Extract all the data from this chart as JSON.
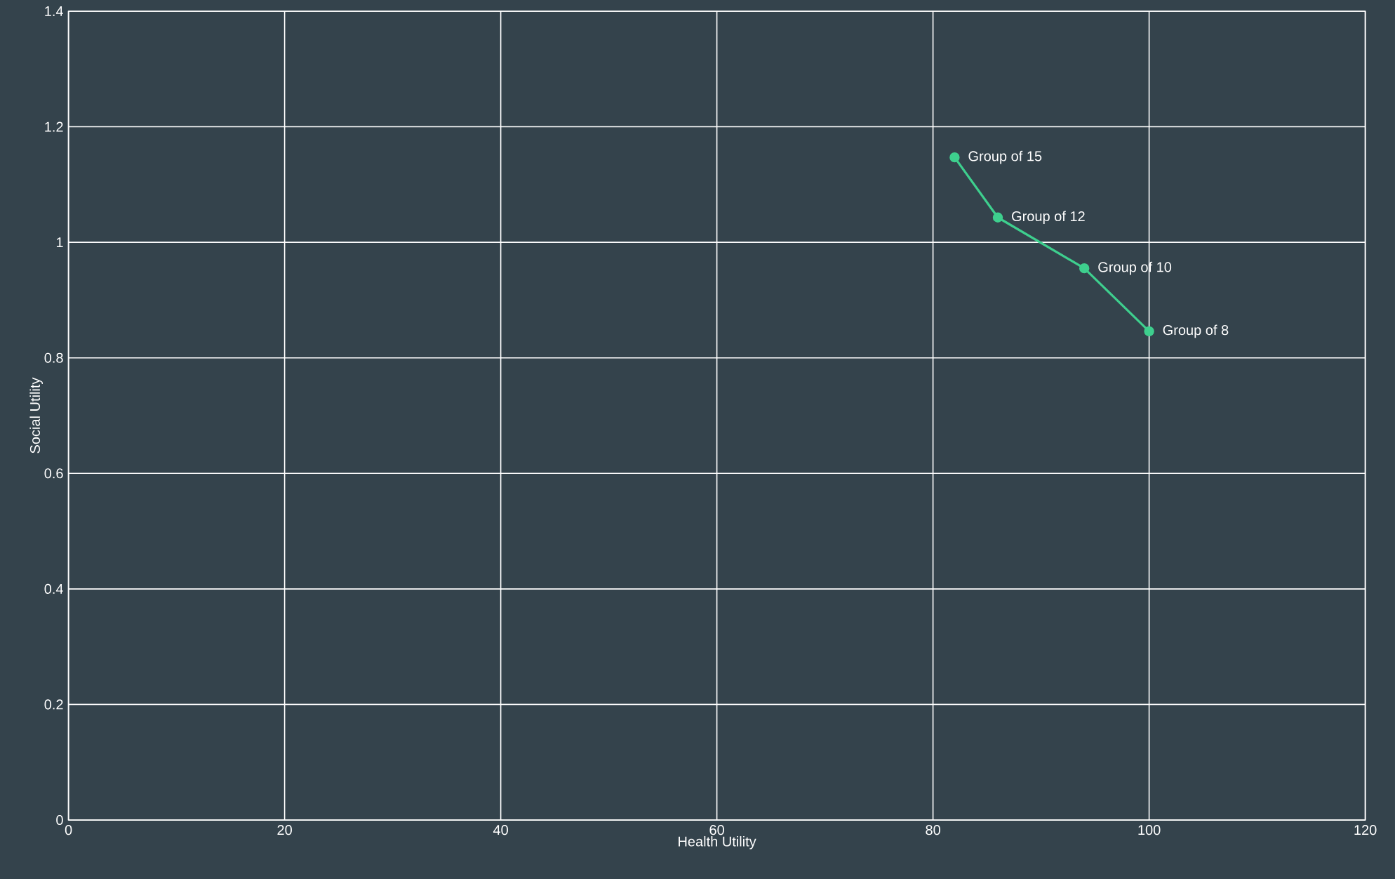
{
  "chart_data": {
    "type": "line",
    "xlabel": "Health Utility",
    "ylabel": "Social Utility",
    "x": [
      82,
      86,
      94,
      100
    ],
    "series": [
      {
        "color": "#3ecf8e",
        "values": [
          1.147,
          1.043,
          0.955,
          0.846
        ]
      }
    ],
    "annotations": [
      {
        "text": "Group of 15",
        "x": 82,
        "y": 1.147
      },
      {
        "text": "Group of 12",
        "x": 86,
        "y": 1.043
      },
      {
        "text": "Group of 10",
        "x": 94,
        "y": 0.955
      },
      {
        "text": "Group of 8",
        "x": 100,
        "y": 0.846
      }
    ],
    "xlim": [
      0,
      120
    ],
    "xticks": [
      0,
      20,
      40,
      60,
      80,
      100,
      120
    ],
    "ylim": [
      0,
      1.4
    ],
    "yticks": [
      0,
      0.2,
      0.4,
      0.6,
      0.8,
      1,
      1.2,
      1.4
    ],
    "grid": true,
    "marker": "circle",
    "line_style": "solid"
  }
}
